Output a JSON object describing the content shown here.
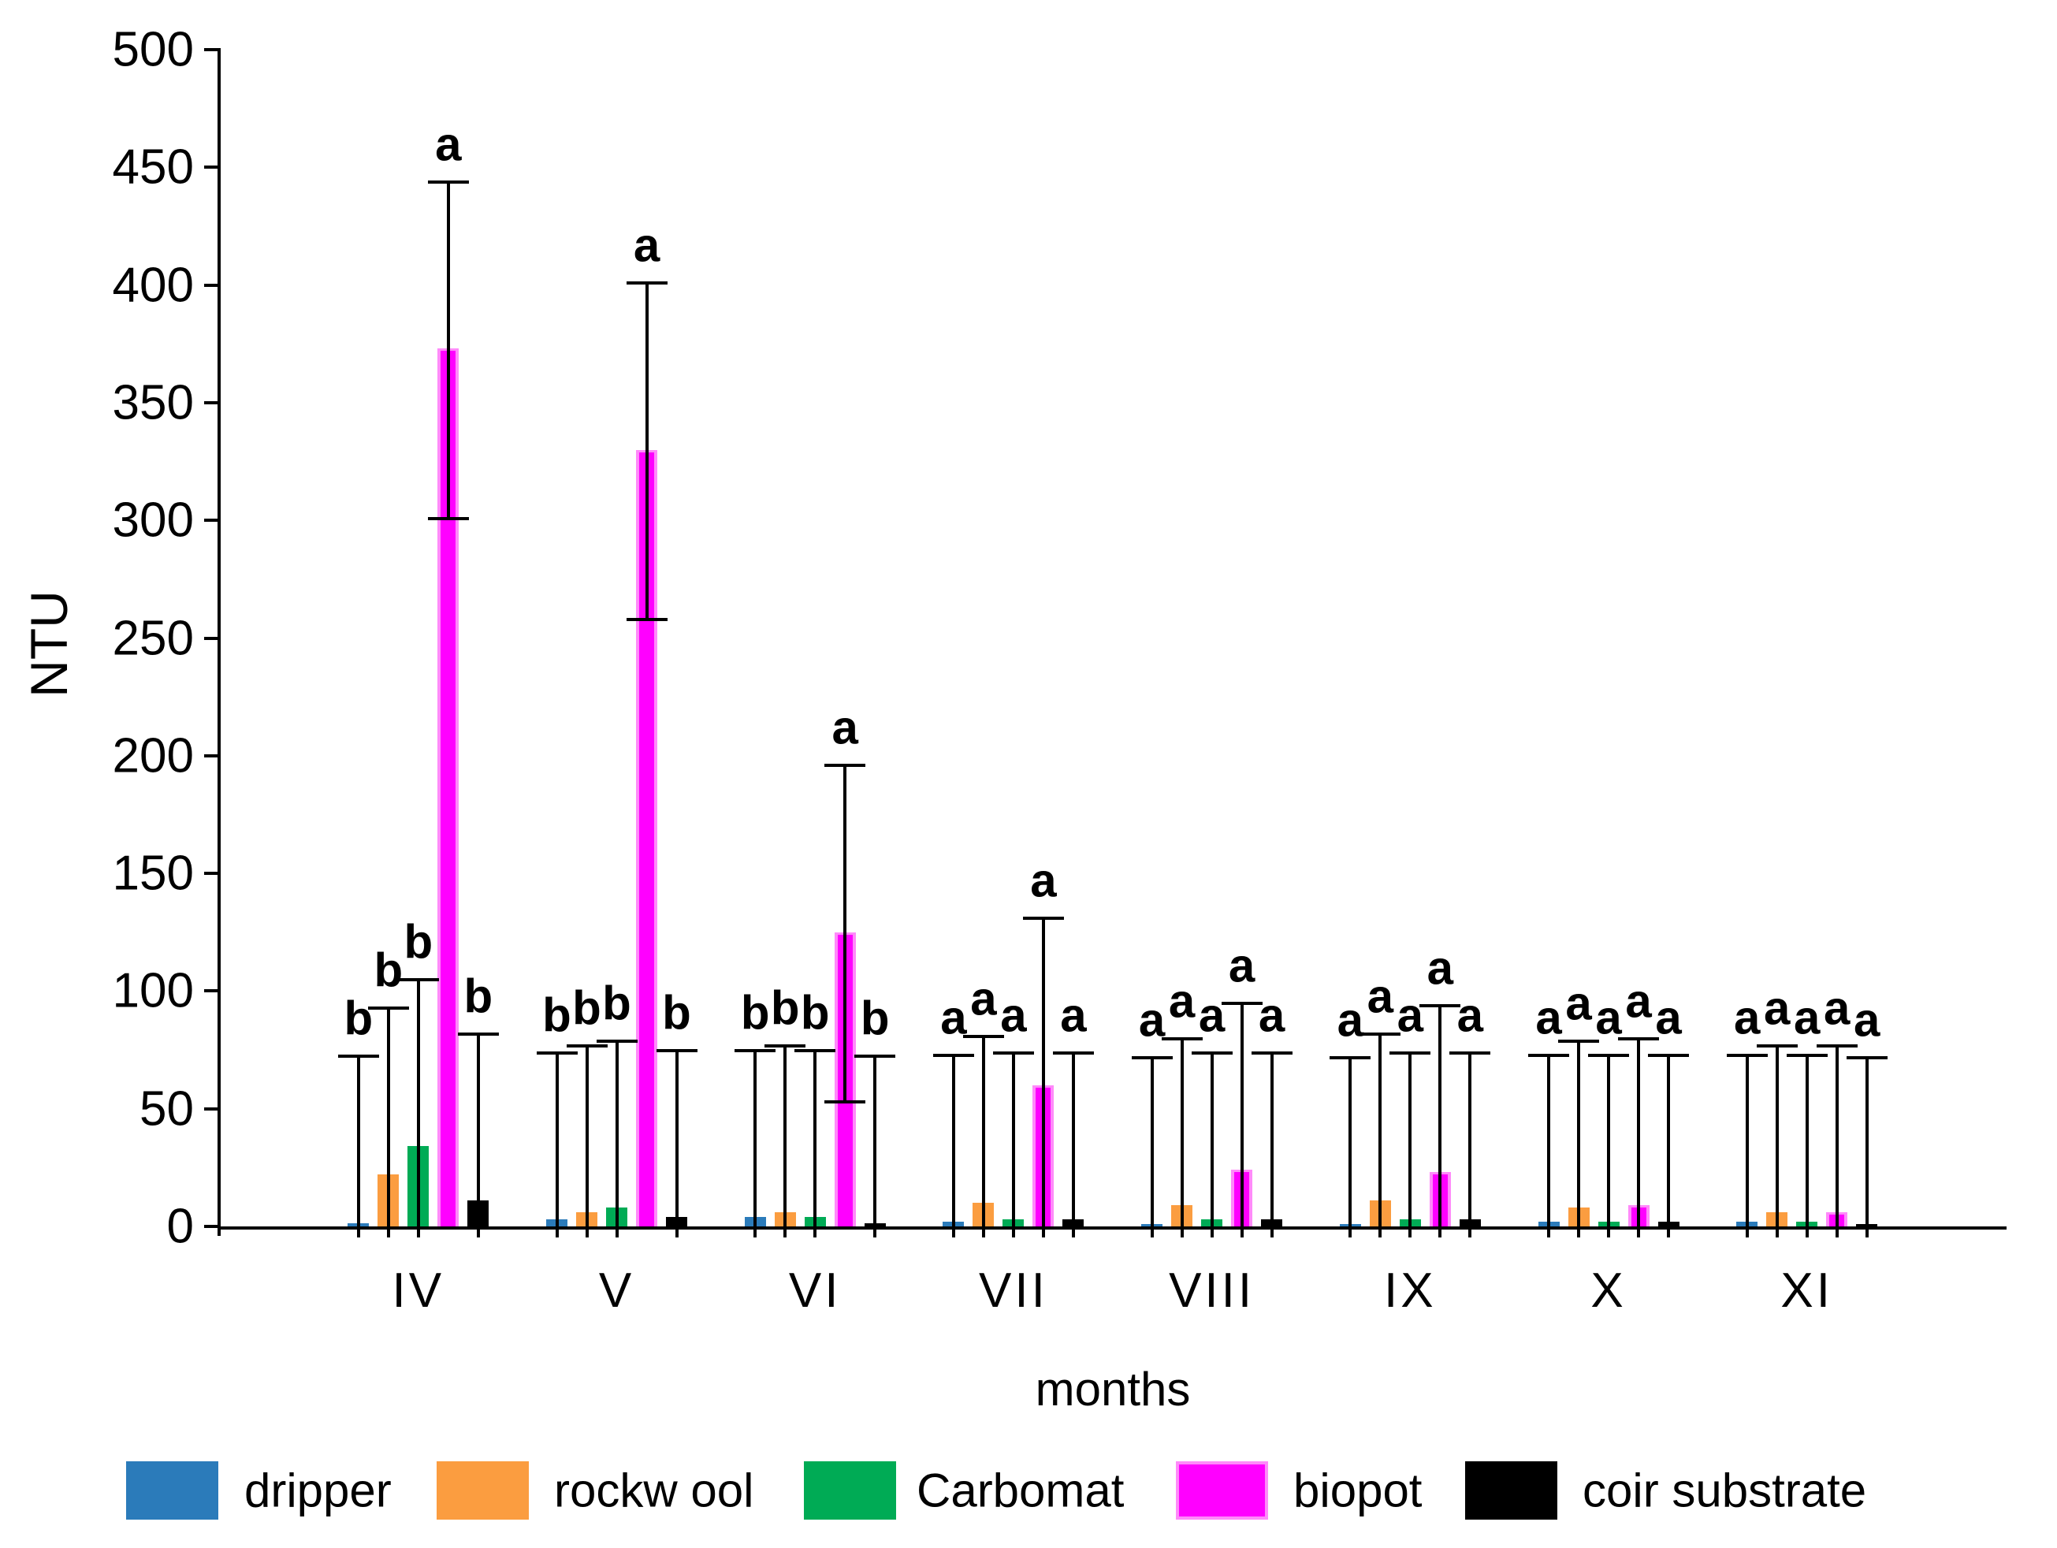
{
  "chart_data": {
    "type": "bar",
    "title": "",
    "xlabel": "months",
    "ylabel": "NTU",
    "ylim": [
      0,
      500
    ],
    "y_ticks": [
      0,
      50,
      100,
      150,
      200,
      250,
      300,
      350,
      400,
      450,
      500
    ],
    "categories": [
      "IV",
      "V",
      "VI",
      "VII",
      "VIII",
      "IX",
      "X",
      "XI"
    ],
    "grid": false,
    "legend_position": "bottom",
    "error_bar_plus_minus": 71.5,
    "series": [
      {
        "name": "dripper",
        "color": "#2B7BBA",
        "values": [
          1.5,
          3,
          4,
          2,
          1,
          1,
          2,
          2
        ],
        "letters": [
          "b",
          "b",
          "b",
          "a",
          "a",
          "a",
          "a",
          "a"
        ]
      },
      {
        "name": "rockw ool",
        "color": "#FB9D40",
        "values": [
          22,
          6,
          6,
          10,
          9,
          11,
          8,
          6
        ],
        "letters": [
          "b",
          "b",
          "b",
          "a",
          "a",
          "a",
          "a",
          "a"
        ]
      },
      {
        "name": "Carbomat",
        "color": "#00AB55",
        "values": [
          34,
          8,
          4,
          3,
          3,
          3,
          2,
          2
        ],
        "letters": [
          "b",
          "b",
          "b",
          "a",
          "a",
          "a",
          "a",
          "a"
        ]
      },
      {
        "name": "biopot",
        "color": "#FF00FF",
        "edge_color": "#FF8AFA",
        "values": [
          373,
          330,
          125,
          60,
          24,
          23,
          9,
          6
        ],
        "letters": [
          "a",
          "a",
          "a",
          "a",
          "a",
          "a",
          "a",
          "a"
        ]
      },
      {
        "name": "coir substrate",
        "color": "#000000",
        "values": [
          11,
          4,
          1.5,
          3,
          3,
          3,
          2,
          1
        ],
        "letters": [
          "b",
          "b",
          "b",
          "a",
          "a",
          "a",
          "a",
          "a"
        ]
      }
    ]
  }
}
